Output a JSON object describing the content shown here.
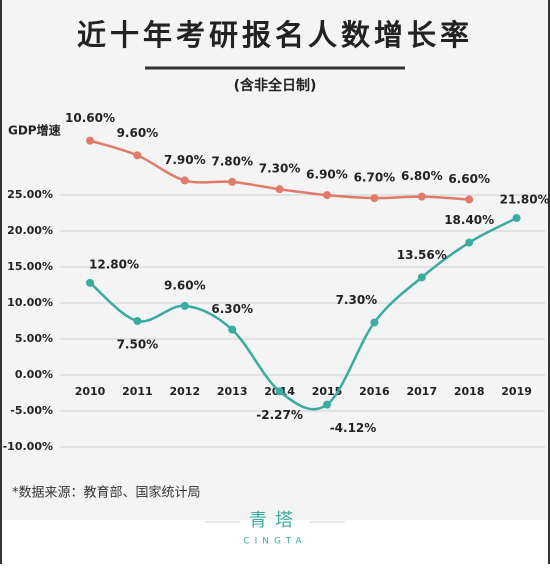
{
  "chart_data": {
    "type": "line",
    "title": "近十年考研报名人数增长率",
    "subtitle": "(含非全日制)",
    "source": "*数据来源：教育部、国家统计局",
    "brand": "青塔",
    "brand_latin": "CINGTA",
    "categories": [
      "2010",
      "2011",
      "2012",
      "2013",
      "2014",
      "2015",
      "2016",
      "2017",
      "2018",
      "2019"
    ],
    "series": [
      {
        "name": "GDP增速",
        "color": "#e07b69",
        "axis": "y2",
        "values": [
          10.6,
          9.6,
          7.9,
          7.8,
          7.3,
          6.9,
          6.7,
          6.8,
          6.6,
          null
        ],
        "value_labels": [
          "10.60%",
          "9.60%",
          "7.90%",
          "7.80%",
          "7.30%",
          "6.90%",
          "6.70%",
          "6.80%",
          "6.60%",
          null
        ]
      },
      {
        "name": "考研报名人数增长率",
        "color": "#3aab9f",
        "values": [
          12.8,
          7.5,
          9.6,
          6.3,
          -2.27,
          -4.12,
          7.3,
          13.56,
          18.4,
          21.8
        ],
        "value_labels": [
          "12.80%",
          "7.50%",
          "9.60%",
          "6.30%",
          "-2.27%",
          "-4.12%",
          "7.30%",
          "13.56%",
          "18.40%",
          "21.80%"
        ]
      }
    ],
    "ylim": [
      -10,
      25
    ],
    "yticks": [
      {
        "value": 25,
        "label": "25.00%"
      },
      {
        "value": 20,
        "label": "20.00%"
      },
      {
        "value": 15,
        "label": "15.00%"
      },
      {
        "value": 10,
        "label": "10.00%"
      },
      {
        "value": 5,
        "label": "5.00%"
      },
      {
        "value": 0,
        "label": "0.00%"
      },
      {
        "value": -5,
        "label": "-5.00%"
      },
      {
        "value": -10,
        "label": "-10.00%"
      }
    ],
    "y2lim": [
      -10.2,
      12
    ],
    "grid": true
  }
}
